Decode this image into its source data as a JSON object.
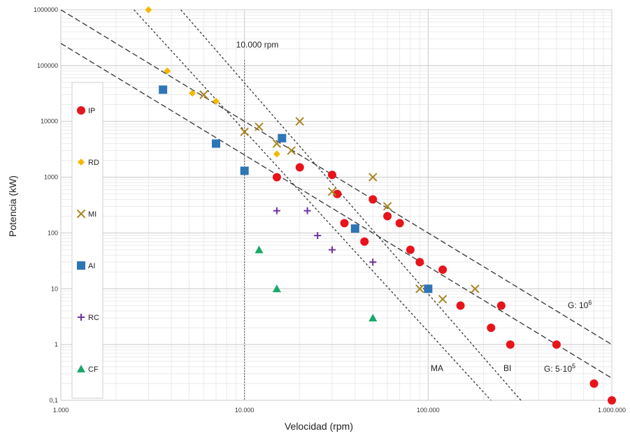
{
  "chart_data": {
    "type": "scatter",
    "xlabel": "Velocidad (rpm)",
    "ylabel": "Potencia (kW)",
    "x_scale": "log",
    "y_scale": "log",
    "xlim": [
      1000,
      1000000
    ],
    "ylim": [
      0.1,
      1000000
    ],
    "grid": true,
    "legend_position": "left",
    "x_tick_labels": [
      "1.000",
      "10.000",
      "100.000",
      "1.000.000"
    ],
    "y_tick_labels": [
      "0,1",
      "1",
      "10",
      "100",
      "1000",
      "10000",
      "100000",
      "1000000"
    ],
    "series": [
      {
        "name": "IP",
        "color": "#e8141b",
        "marker": "circle",
        "points": [
          [
            15000,
            1000
          ],
          [
            20000,
            1500
          ],
          [
            30000,
            1100
          ],
          [
            32000,
            500
          ],
          [
            35000,
            150
          ],
          [
            45000,
            70
          ],
          [
            50000,
            400
          ],
          [
            60000,
            200
          ],
          [
            70000,
            150
          ],
          [
            80000,
            50
          ],
          [
            90000,
            30
          ],
          [
            120000,
            22
          ],
          [
            150000,
            5
          ],
          [
            220000,
            2
          ],
          [
            250000,
            5
          ],
          [
            280000,
            1
          ],
          [
            500000,
            1
          ],
          [
            800000,
            0.2
          ],
          [
            1000000,
            0.1
          ]
        ]
      },
      {
        "name": "RD",
        "color": "#f5b800",
        "marker": "diamond",
        "points": [
          [
            3000,
            1000000
          ],
          [
            3800,
            80000
          ],
          [
            5200,
            32000
          ],
          [
            7000,
            23000
          ],
          [
            15000,
            2600
          ]
        ]
      },
      {
        "name": "MI",
        "color": "#a88620",
        "marker": "x",
        "points": [
          [
            6000,
            30000
          ],
          [
            10000,
            6500
          ],
          [
            12000,
            8000
          ],
          [
            15000,
            4000
          ],
          [
            18000,
            3000
          ],
          [
            20000,
            10000
          ],
          [
            30000,
            550
          ],
          [
            50000,
            1000
          ],
          [
            60000,
            300
          ],
          [
            90000,
            10
          ],
          [
            120000,
            6.5
          ],
          [
            180000,
            10
          ]
        ]
      },
      {
        "name": "AI",
        "color": "#2e75b6",
        "marker": "square",
        "points": [
          [
            3600,
            37000
          ],
          [
            7000,
            4000
          ],
          [
            10000,
            1300
          ],
          [
            16000,
            5000
          ],
          [
            40000,
            120
          ],
          [
            100000,
            10
          ]
        ]
      },
      {
        "name": "RC",
        "color": "#7030a0",
        "marker": "plus",
        "points": [
          [
            15000,
            250
          ],
          [
            22000,
            250
          ],
          [
            25000,
            90
          ],
          [
            30000,
            50
          ],
          [
            50000,
            30
          ]
        ]
      },
      {
        "name": "CF",
        "color": "#1aa86a",
        "marker": "triangle",
        "points": [
          [
            12000,
            50
          ],
          [
            15000,
            10
          ],
          [
            50000,
            3
          ]
        ]
      }
    ],
    "reference_lines": [
      {
        "label": "G: 10",
        "label_sup": "6",
        "from": [
          1000,
          1000000
        ],
        "to": [
          1000000,
          1
        ],
        "style": "dashed"
      },
      {
        "label": "G: 5·10",
        "label_sup": "5",
        "from": [
          1000,
          250000
        ],
        "to": [
          1000000,
          0.25
        ],
        "style": "dashed"
      },
      {
        "label": "MA",
        "from": [
          2500,
          1000000
        ],
        "to": [
          220000,
          0.1
        ],
        "style": "dotted"
      },
      {
        "label": "BI",
        "from": [
          4500,
          1000000
        ],
        "to": [
          320000,
          0.1
        ],
        "style": "dotted"
      }
    ],
    "vertical_marker": {
      "x": 10000,
      "label": "10.000 rpm"
    },
    "annotations": [
      "G: 10",
      "6",
      "G: 5·10",
      "5",
      "MA",
      "BI",
      "10.000 rpm"
    ]
  }
}
